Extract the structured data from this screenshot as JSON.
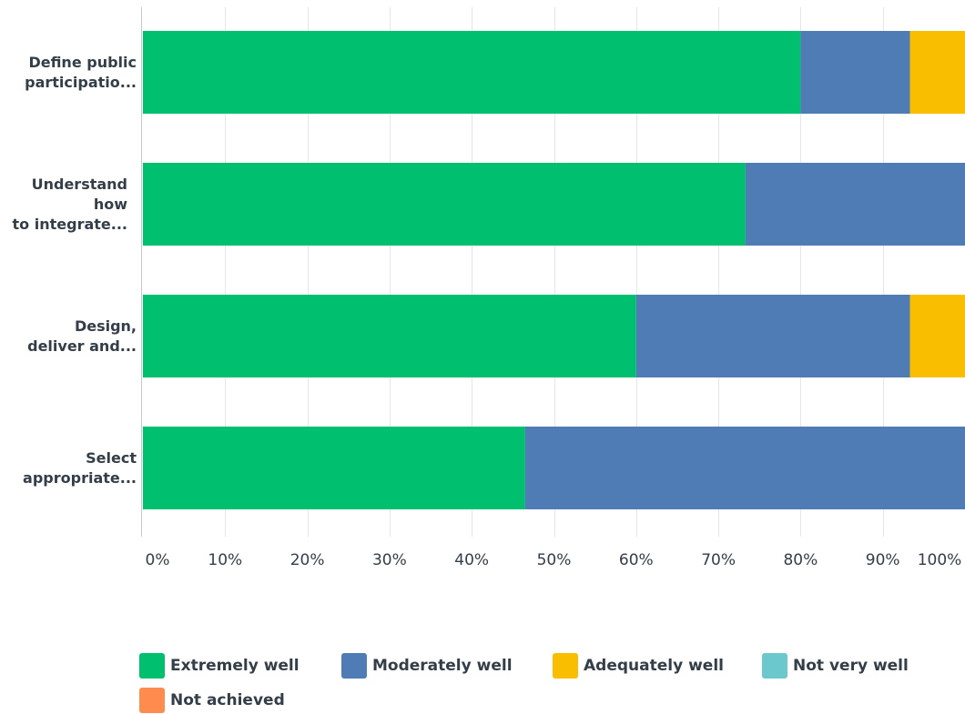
{
  "chart_data": {
    "type": "bar",
    "orientation": "horizontal",
    "stacked": true,
    "categories": [
      [
        "Define public",
        "participatio..."
      ],
      [
        "Understand",
        "how",
        "to integrate..."
      ],
      [
        "Design,",
        "deliver and..."
      ],
      [
        "Select",
        "appropriate..."
      ]
    ],
    "series": [
      {
        "name": "Extremely well",
        "color": "#00bf6f",
        "values": [
          80,
          73.3,
          60,
          46.5
        ]
      },
      {
        "name": "Moderately well",
        "color": "#507cb6",
        "values": [
          13.3,
          26.7,
          33.3,
          53.5
        ]
      },
      {
        "name": "Adequately well",
        "color": "#f9be00",
        "values": [
          6.7,
          0,
          6.7,
          0
        ]
      },
      {
        "name": "Not very well",
        "color": "#6bc8cd",
        "values": [
          0,
          0,
          0,
          0
        ]
      },
      {
        "name": "Not achieved",
        "color": "#ff8b4f",
        "values": [
          0,
          0,
          0,
          0
        ]
      }
    ],
    "xticks": [
      "0%",
      "10%",
      "20%",
      "30%",
      "40%",
      "50%",
      "60%",
      "70%",
      "80%",
      "90%",
      "100%"
    ],
    "xlim": [
      0,
      100
    ],
    "grid": true,
    "legend_position": "bottom"
  }
}
